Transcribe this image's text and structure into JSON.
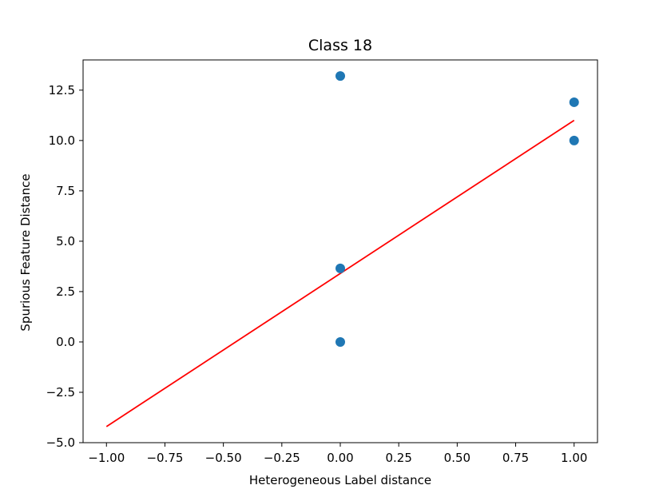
{
  "chart_data": {
    "type": "scatter",
    "title": "Class 18",
    "xlabel": "Heterogeneous Label distance",
    "ylabel": "Spurious Feature Distance",
    "xlim": [
      -1.1,
      1.1
    ],
    "ylim": [
      -5.0,
      14.0
    ],
    "x_ticks": [
      -1.0,
      -0.75,
      -0.5,
      -0.25,
      0.0,
      0.25,
      0.5,
      0.75,
      1.0
    ],
    "x_tick_labels": [
      "−1.00",
      "−0.75",
      "−0.50",
      "−0.25",
      "0.00",
      "0.25",
      "0.50",
      "0.75",
      "1.00"
    ],
    "y_ticks": [
      -5.0,
      -2.5,
      0.0,
      2.5,
      5.0,
      7.5,
      10.0,
      12.5
    ],
    "y_tick_labels": [
      "−5.0",
      "−2.5",
      "0.0",
      "2.5",
      "5.0",
      "7.5",
      "10.0",
      "12.5"
    ],
    "grid": false,
    "series": [
      {
        "kind": "scatter",
        "color": "#1f77b4",
        "points": [
          {
            "x": 0.0,
            "y": 13.2
          },
          {
            "x": 0.0,
            "y": 3.65
          },
          {
            "x": 0.0,
            "y": 0.0
          },
          {
            "x": 1.0,
            "y": 11.9
          },
          {
            "x": 1.0,
            "y": 10.0
          }
        ]
      },
      {
        "kind": "line",
        "color": "#ff0000",
        "points": [
          {
            "x": -1.0,
            "y": -4.2
          },
          {
            "x": 1.0,
            "y": 11.0
          }
        ]
      }
    ]
  }
}
